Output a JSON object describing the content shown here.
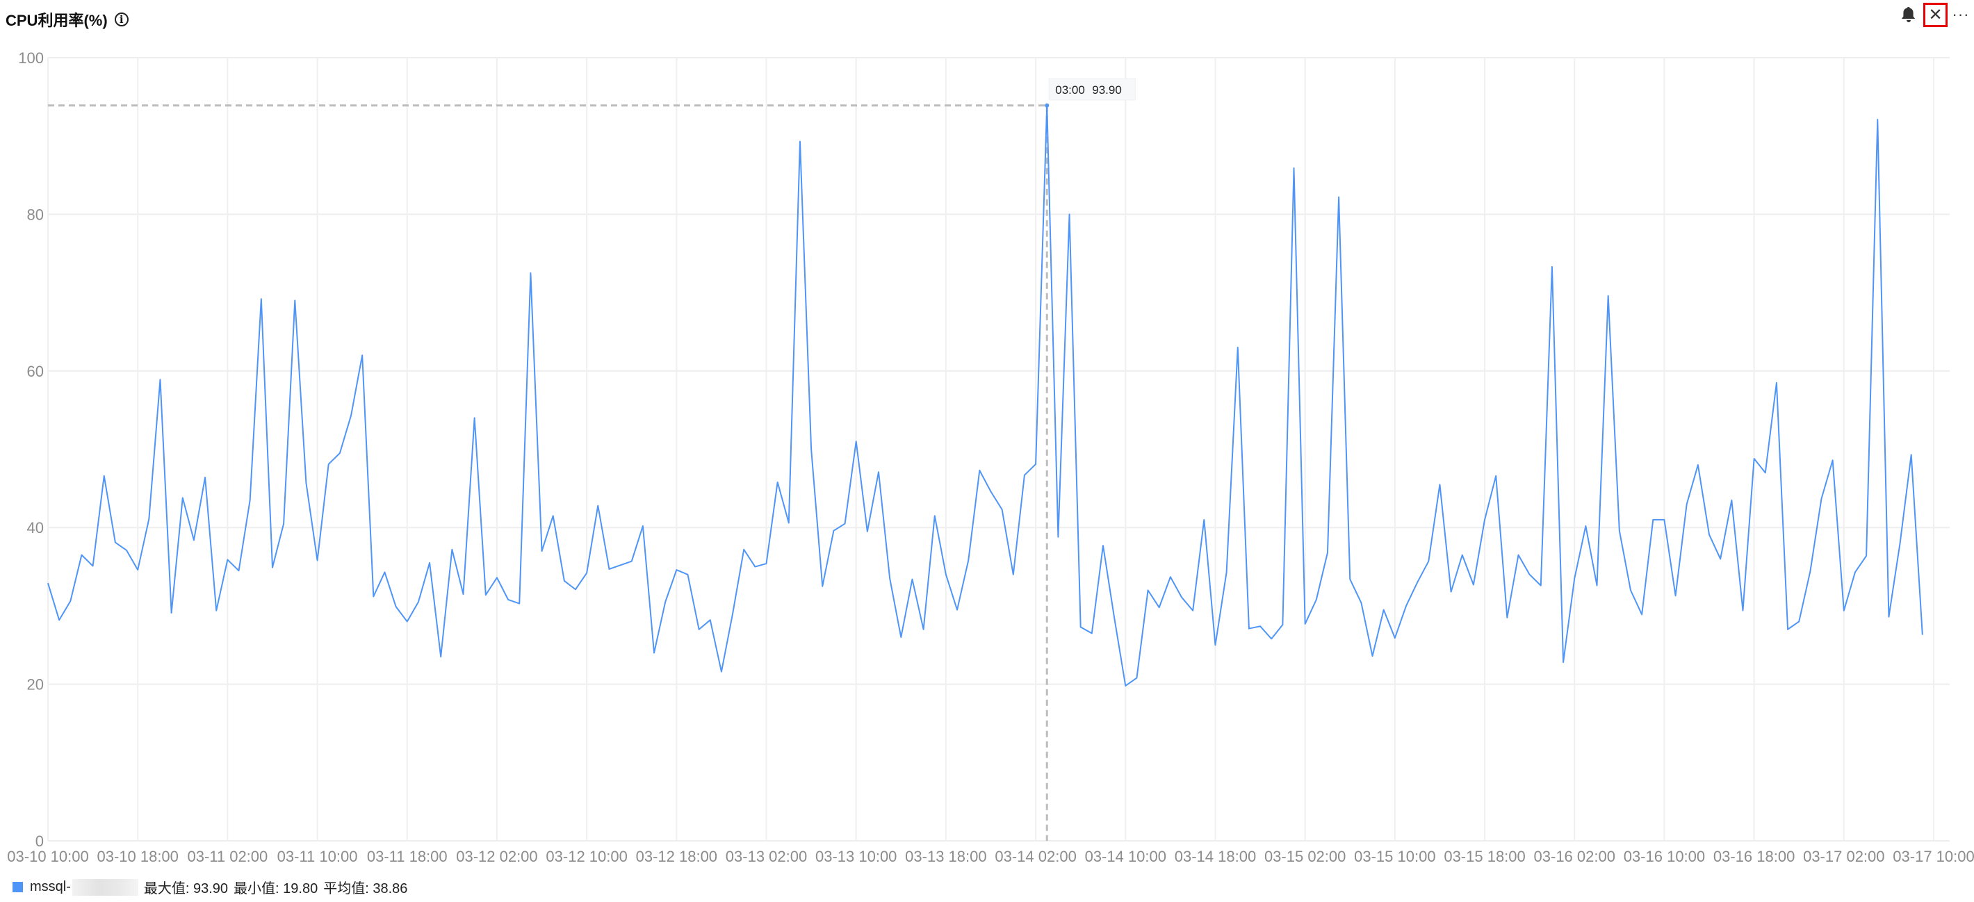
{
  "header": {
    "title": "CPU利用率(%)",
    "info_icon": "info-icon",
    "icons": [
      "bell-icon",
      "close-icon",
      "more-icon"
    ]
  },
  "tooltip": {
    "time": "03:00",
    "value": "93.90"
  },
  "legend": {
    "name": "mssql-",
    "max": "最大值: 93.90",
    "min": "最小值: 19.80",
    "avg": "平均值: 38.86"
  },
  "chart_data": {
    "type": "line",
    "title": "CPU利用率(%)",
    "ylim": [
      0,
      100
    ],
    "yticks": [
      "0",
      "20",
      "40",
      "60",
      "80",
      "100"
    ],
    "xticks": [
      "03-10 10:00",
      "03-10 18:00",
      "03-11 02:00",
      "03-11 10:00",
      "03-11 18:00",
      "03-12 02:00",
      "03-12 10:00",
      "03-12 18:00",
      "03-13 02:00",
      "03-13 10:00",
      "03-13 18:00",
      "03-14 02:00",
      "03-14 10:00",
      "03-14 18:00",
      "03-15 02:00",
      "03-15 10:00",
      "03-15 18:00",
      "03-16 02:00",
      "03-16 10:00",
      "03-16 18:00",
      "03-17 02:00",
      "03-17 10:00"
    ],
    "x_start": "03-10 10:00",
    "x_interval": "1h",
    "grid": true,
    "color": "#4f95f7",
    "series": [
      {
        "name": "mssql-",
        "values": [
          32.9,
          28.2,
          30.6,
          36.5,
          35.1,
          46.6,
          38.1,
          37.1,
          34.6,
          41.1,
          58.9,
          29.1,
          43.8,
          38.4,
          46.4,
          29.4,
          35.9,
          34.5,
          43.5,
          69.2,
          34.9,
          40.5,
          69,
          45.7,
          35.8,
          48.1,
          49.5,
          54.3,
          62,
          31.2,
          34.3,
          29.9,
          28,
          30.5,
          35.5,
          23.5,
          37.2,
          31.5,
          54,
          31.4,
          33.6,
          30.8,
          30.3,
          72.5,
          37,
          41.5,
          33.2,
          32.1,
          34.2,
          42.8,
          34.7,
          35.2,
          35.7,
          40.2,
          24,
          30.5,
          34.6,
          34,
          27,
          28.2,
          21.6,
          29,
          37.2,
          35,
          35.4,
          45.8,
          40.6,
          89.3,
          50,
          32.5,
          39.6,
          40.5,
          51,
          39.5,
          47.1,
          33.5,
          26,
          33.4,
          27,
          41.5,
          34,
          29.5,
          35.8,
          47.3,
          44.6,
          42.3,
          34,
          46.7,
          48.1,
          93.9,
          38.8,
          80,
          27.3,
          26.5,
          37.7,
          28.5,
          19.8,
          20.8,
          32,
          29.8,
          33.7,
          31.1,
          29.4,
          41,
          25,
          34.3,
          63,
          27.1,
          27.4,
          25.8,
          27.6,
          85.9,
          27.7,
          30.8,
          36.8,
          82.2,
          33.4,
          30.4,
          23.6,
          29.5,
          25.9,
          30,
          33,
          35.7,
          45.5,
          31.8,
          36.5,
          32.7,
          41,
          46.6,
          28.5,
          36.5,
          34,
          32.6,
          73.3,
          22.8,
          33.5,
          40.2,
          32.6,
          69.6,
          39.6,
          32,
          28.9,
          41,
          41,
          31.3,
          43,
          48,
          39.1,
          36,
          43.5,
          29.4,
          48.8,
          47,
          58.5,
          27,
          28,
          34.4,
          43.7,
          48.6,
          29.4,
          34.3,
          36.4,
          92.1,
          28.6,
          38,
          49.3,
          26.3
        ]
      }
    ],
    "hover_index": 89
  }
}
